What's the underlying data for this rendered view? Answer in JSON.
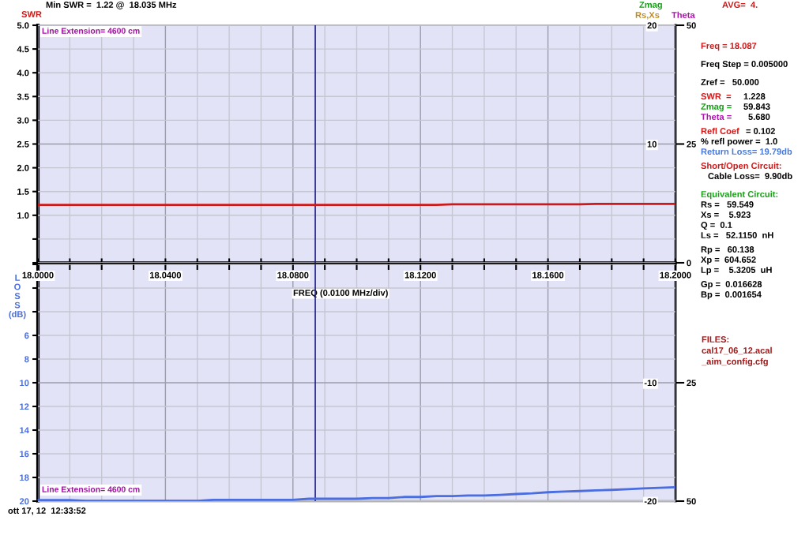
{
  "chart_data": [
    {
      "type": "line",
      "title": "Min SWR =  1.22 @  18.035 MHz",
      "ylabel": "SWR",
      "y2label": "Rs,Xs",
      "y3label": "Theta",
      "x": [
        18.0,
        18.125,
        18.13,
        18.17,
        18.175,
        18.2
      ],
      "series": [
        {
          "color": "#cc1a1a",
          "values": [
            1.22,
            1.22,
            1.23,
            1.23,
            1.24,
            1.24
          ]
        }
      ],
      "xlim": [
        18.0,
        18.2
      ],
      "xticks": [
        {
          "value": 18.0,
          "label": null
        },
        {
          "value": 18.01,
          "label": null
        },
        {
          "value": 18.02,
          "label": null
        },
        {
          "value": 18.03,
          "label": null
        },
        {
          "value": 18.04,
          "label": null
        },
        {
          "value": 18.05,
          "label": null
        },
        {
          "value": 18.06,
          "label": null
        },
        {
          "value": 18.07,
          "label": null
        },
        {
          "value": 18.08,
          "label": null
        },
        {
          "value": 18.09,
          "label": null
        },
        {
          "value": 18.1,
          "label": null
        },
        {
          "value": 18.11,
          "label": null
        },
        {
          "value": 18.12,
          "label": null
        },
        {
          "value": 18.13,
          "label": null
        },
        {
          "value": 18.14,
          "label": null
        },
        {
          "value": 18.15,
          "label": null
        },
        {
          "value": 18.16,
          "label": null
        },
        {
          "value": 18.17,
          "label": null
        },
        {
          "value": 18.18,
          "label": null
        },
        {
          "value": 18.19,
          "label": null
        },
        {
          "value": 18.2,
          "label": null
        }
      ],
      "ylim": [
        0,
        5
      ],
      "yticks": [
        {
          "value": 0,
          "label": null
        },
        {
          "value": 0.5,
          "label": null
        },
        {
          "value": 1,
          "label": "1.0"
        },
        {
          "value": 1.5,
          "label": "1.5"
        },
        {
          "value": 2,
          "label": "2.0"
        },
        {
          "value": 2.5,
          "label": "2.5"
        },
        {
          "value": 3,
          "label": "3.0"
        },
        {
          "value": 3.5,
          "label": "3.5"
        },
        {
          "value": 4,
          "label": "4.0"
        },
        {
          "value": 4.5,
          "label": "4.5"
        },
        {
          "value": 5,
          "label": "5.0"
        }
      ],
      "y2lim": [
        0,
        20
      ],
      "y2ticks": [
        10,
        20
      ],
      "y3lim": [
        0,
        50
      ],
      "y3ticks": [
        0,
        25,
        50
      ],
      "ref_lines": [
        {
          "axis": "x",
          "value": 18.087,
          "color": "#20208c"
        }
      ],
      "grid": true,
      "tick_labels": "y",
      "annotations": [
        "Line Extension= 4600 cm",
        "Zmag"
      ]
    },
    {
      "type": "line",
      "xlabel": "FREQ (0.0100 MHz/div)",
      "ylabel": "LOSS (dB)",
      "x": [
        18.0,
        18.005,
        18.01,
        18.015,
        18.02,
        18.025,
        18.03,
        18.035,
        18.04,
        18.045,
        18.05,
        18.055,
        18.06,
        18.065,
        18.07,
        18.075,
        18.08,
        18.085,
        18.09,
        18.095,
        18.1,
        18.105,
        18.11,
        18.115,
        18.12,
        18.125,
        18.13,
        18.135,
        18.14,
        18.145,
        18.15,
        18.155,
        18.16,
        18.165,
        18.17,
        18.175,
        18.18,
        18.185,
        18.19,
        18.195,
        18.2
      ],
      "series": [
        {
          "color": "#4a6ee0",
          "values": [
            19.91,
            19.91,
            19.91,
            19.98,
            19.98,
            19.98,
            19.98,
            19.98,
            19.98,
            19.98,
            19.98,
            19.89,
            19.89,
            19.89,
            19.89,
            19.89,
            19.89,
            19.8,
            19.8,
            19.8,
            19.8,
            19.74,
            19.74,
            19.65,
            19.65,
            19.58,
            19.58,
            19.52,
            19.52,
            19.47,
            19.4,
            19.34,
            19.25,
            19.19,
            19.15,
            19.09,
            19.05,
            18.99,
            18.92,
            18.87,
            18.83
          ]
        }
      ],
      "xlim": [
        18.0,
        18.2
      ],
      "xticks": [
        {
          "value": 18.0,
          "label": "18.0000"
        },
        {
          "value": 18.01,
          "label": null
        },
        {
          "value": 18.02,
          "label": null
        },
        {
          "value": 18.03,
          "label": null
        },
        {
          "value": 18.04,
          "label": "18.0400"
        },
        {
          "value": 18.05,
          "label": null
        },
        {
          "value": 18.06,
          "label": null
        },
        {
          "value": 18.07,
          "label": null
        },
        {
          "value": 18.08,
          "label": "18.0800"
        },
        {
          "value": 18.09,
          "label": null
        },
        {
          "value": 18.1,
          "label": null
        },
        {
          "value": 18.11,
          "label": null
        },
        {
          "value": 18.12,
          "label": "18.1200"
        },
        {
          "value": 18.13,
          "label": null
        },
        {
          "value": 18.14,
          "label": null
        },
        {
          "value": 18.15,
          "label": null
        },
        {
          "value": 18.16,
          "label": "18.1600"
        },
        {
          "value": 18.17,
          "label": null
        },
        {
          "value": 18.18,
          "label": null
        },
        {
          "value": 18.19,
          "label": null
        },
        {
          "value": 18.2,
          "label": "18.2000"
        }
      ],
      "ylim": [
        20,
        0
      ],
      "yticks": [
        {
          "value": 0,
          "label": null
        },
        {
          "value": 2,
          "label": null
        },
        {
          "value": 4,
          "label": null
        },
        6,
        8,
        10,
        12,
        14,
        16,
        18,
        20
      ],
      "y2lim": [
        -20,
        0
      ],
      "y2ticks": [
        -20,
        -10
      ],
      "y3lim": [
        50,
        0
      ],
      "y3ticks": [
        25,
        50
      ],
      "ref_lines": [
        {
          "axis": "x",
          "value": 18.087,
          "color": "#20208c"
        }
      ],
      "grid": true,
      "annotations": [
        "Line Extension= 4600 cm",
        "ott 17, 12  12:33:52"
      ]
    },
    {
      "type": "other",
      "annotations": [
        "AVG=  4.",
        "Freq = 18.087",
        "Freq Step = 0.005000",
        "Zref =   50.000",
        "SWR  =",
        "1.228",
        "Zmag =",
        "59.843",
        "Theta =",
        "5.680",
        "Refl Coef",
        "= 0.102",
        "% refl power =  1.0",
        "Return Loss= 19.79db",
        "Short/Open Circuit:",
        "Cable Loss=  9.90db",
        "Equivalent Circuit:",
        "Rs =   59.549",
        "Xs =    5.923",
        "Q =  0.1",
        "Ls =   52.1150  nH",
        "Rp =   60.138",
        "Xp =  604.652",
        "Lp =    5.3205  uH",
        "Gp =  0.016628",
        "Bp =  0.001654",
        "FILES:",
        "cal17_06_12.acal",
        "_aim_config.cfg"
      ],
      "colors": [
        "#d01818",
        "#d01818",
        "#000000",
        "#000000",
        "#d01818",
        "#000000",
        "#14a014",
        "#000000",
        "#b010b0",
        "#000000",
        "#d01818",
        "#000000",
        "#000000",
        "#4878d8",
        "#d01818",
        "#000000",
        "#14a014",
        "#000000",
        "#000000",
        "#000000",
        "#000000",
        "#000000",
        "#000000",
        "#000000",
        "#000000",
        "#000000",
        "#a01818",
        "#a01818",
        "#a01818"
      ]
    }
  ]
}
